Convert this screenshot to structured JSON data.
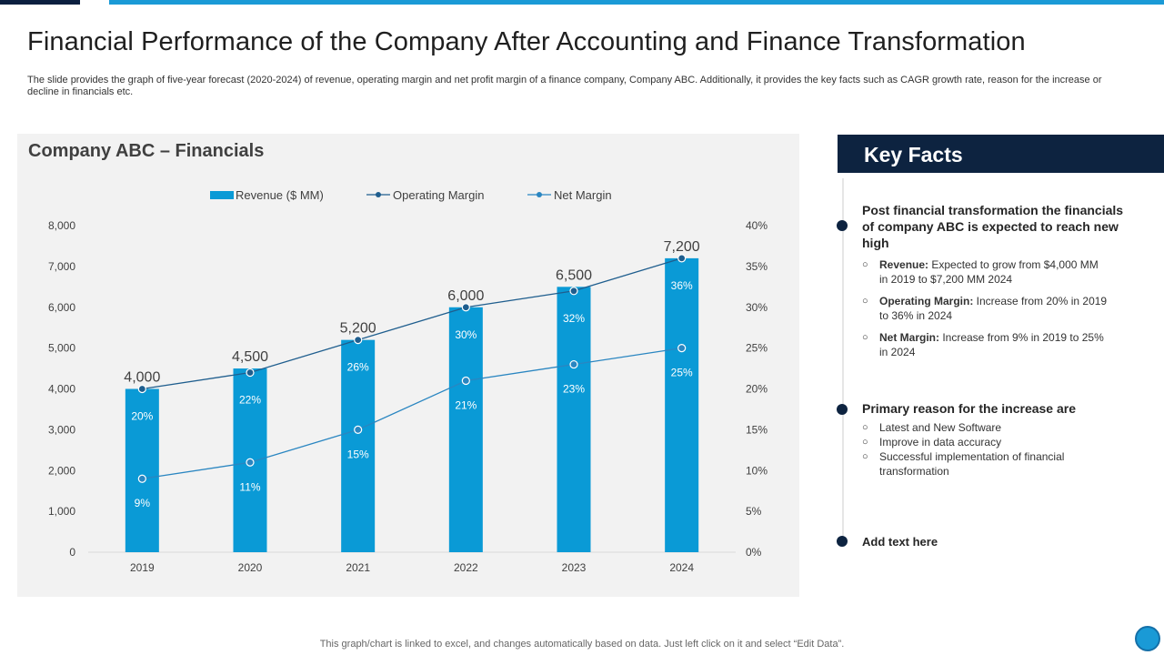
{
  "slide": {
    "title": "Financial Performance of the Company After Accounting and Finance Transformation",
    "description": "The slide provides the graph of five-year forecast (2020-2024) of revenue, operating margin and net profit margin of a finance company, Company ABC. Additionally, it provides the key facts such as CAGR growth rate, reason for the increase or decline in financials etc.",
    "footnote": "This graph/chart is linked to excel,  and changes automatically based on data. Just left click on it and select “Edit Data”."
  },
  "colors": {
    "accent": "#1a9ad6",
    "navy": "#0d2340",
    "bar": "#0a9ad6",
    "operating_line": "#1f5e8e",
    "net_line": "#2a86c1",
    "panel": "#f2f2f2"
  },
  "chart_data": {
    "type": "bar",
    "title": "Company ABC – Financials",
    "categories": [
      "2019",
      "2020",
      "2021",
      "2022",
      "2023",
      "2024"
    ],
    "series": [
      {
        "name": "Revenue ($ MM)",
        "kind": "bar",
        "axis": "left",
        "values": [
          4000,
          4500,
          5200,
          6000,
          6500,
          7200
        ],
        "labels": [
          "4,000",
          "4,500",
          "5,200",
          "6,000",
          "6,500",
          "7,200"
        ]
      },
      {
        "name": "Operating Margin",
        "kind": "line",
        "axis": "right",
        "values": [
          20,
          22,
          26,
          30,
          32,
          36
        ],
        "labels": [
          "20%",
          "22%",
          "26%",
          "30%",
          "32%",
          "36%"
        ]
      },
      {
        "name": "Net Margin",
        "kind": "line",
        "axis": "right",
        "values": [
          9,
          11,
          15,
          21,
          23,
          25
        ],
        "labels": [
          "9%",
          "11%",
          "15%",
          "21%",
          "23%",
          "25%"
        ]
      }
    ],
    "left_axis": {
      "ylim": [
        0,
        8000
      ],
      "ticks": [
        "0",
        "1,000",
        "2,000",
        "3,000",
        "4,000",
        "5,000",
        "6,000",
        "7,000",
        "8,000"
      ]
    },
    "right_axis": {
      "ylim": [
        0,
        40
      ],
      "ticks": [
        "0%",
        "5%",
        "10%",
        "15%",
        "20%",
        "25%",
        "30%",
        "35%",
        "40%"
      ]
    },
    "legend_position": "top-center",
    "grid": false
  },
  "key_facts": {
    "title": "Key Facts",
    "section1": {
      "heading": "Post financial transformation the financials of company ABC is expected to reach new high",
      "items": [
        {
          "label": "Revenue:",
          "text": " Expected to grow from $4,000 MM in 2019 to $7,200 MM 2024"
        },
        {
          "label": "Operating Margin:",
          "text": " Increase from 20% in 2019 to 36% in 2024"
        },
        {
          "label": "Net Margin:",
          "text": " Increase from 9% in 2019 to 25% in 2024"
        }
      ]
    },
    "section2": {
      "heading": "Primary reason for the increase are",
      "items": [
        "Latest and New Software",
        "Improve  in data accuracy",
        "Successful implementation of financial transformation"
      ]
    },
    "section3": {
      "heading": "Add text here"
    },
    "bullet_glyph": "○"
  }
}
